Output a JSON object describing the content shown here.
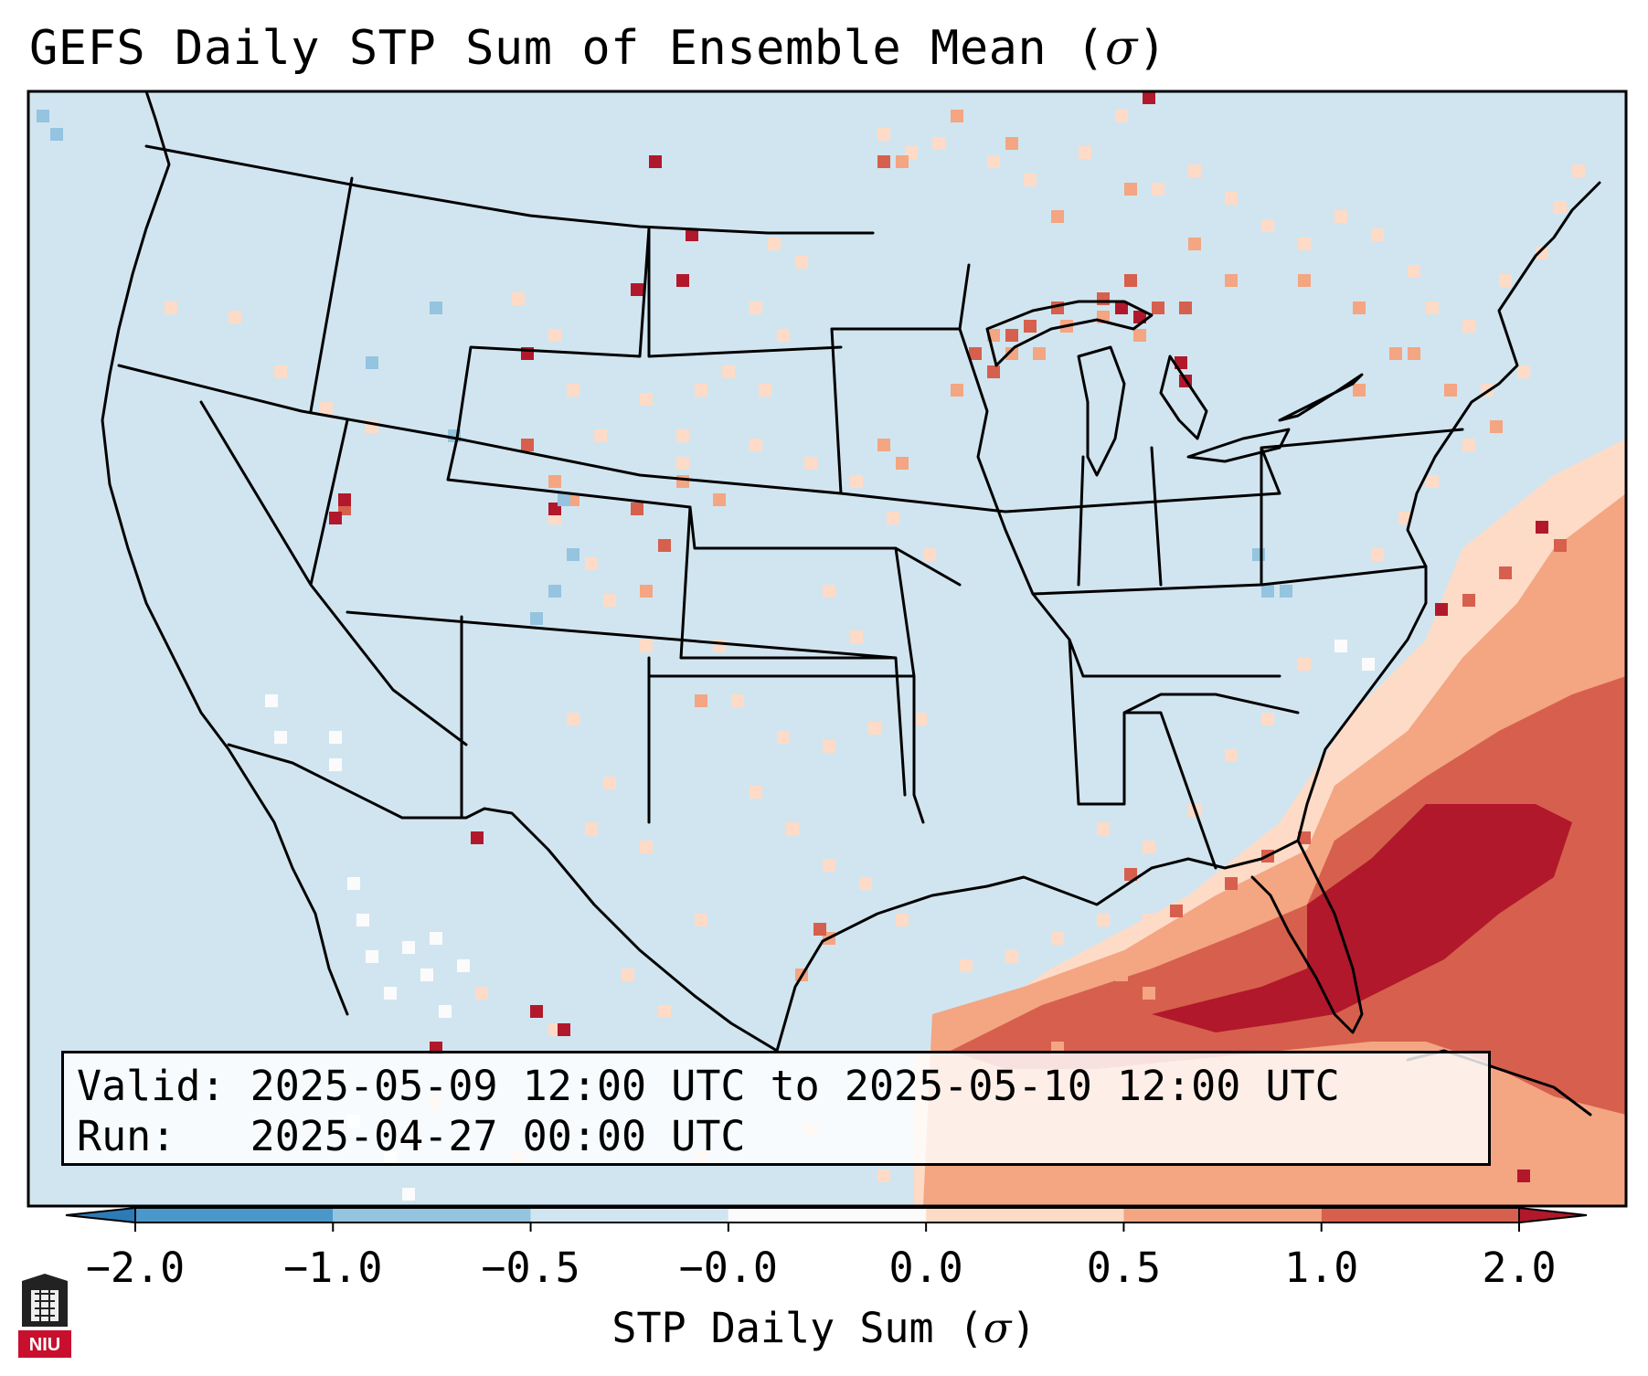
{
  "title_text": "GEFS Daily STP Sum of Ensemble Mean (",
  "title_symbol": "σ",
  "title_close": ")",
  "info": {
    "valid_label": "Valid:",
    "valid_value": "2025-05-09 12:00 UTC to 2025-05-10 12:00 UTC",
    "run_label": "Run:",
    "run_value": "2025-04-27 00:00 UTC"
  },
  "colorbar": {
    "ticks": [
      "−2.0",
      "−1.0",
      "−0.5",
      "−0.0",
      "0.0",
      "0.5",
      "1.0",
      "2.0"
    ],
    "colors": [
      "#2c7bb6",
      "#4a98c9",
      "#94c4df",
      "#d1e5f0",
      "#fbfbfb",
      "#fddbc7",
      "#f4a582",
      "#d6604d",
      "#b2182b"
    ],
    "label_text": "STP Daily Sum (",
    "label_symbol": "σ",
    "label_close": ")"
  },
  "map": {
    "background_color": "#d1e5f0",
    "colors": {
      "lightest_red": "#fddbc7",
      "light_red": "#f4a582",
      "mid_red": "#d6604d",
      "dark_red": "#b2182b",
      "light_blue": "#94c4df",
      "white": "#fbfbfb"
    }
  },
  "logo": {
    "text": "NIU",
    "icon": "niu-logo-icon"
  }
}
